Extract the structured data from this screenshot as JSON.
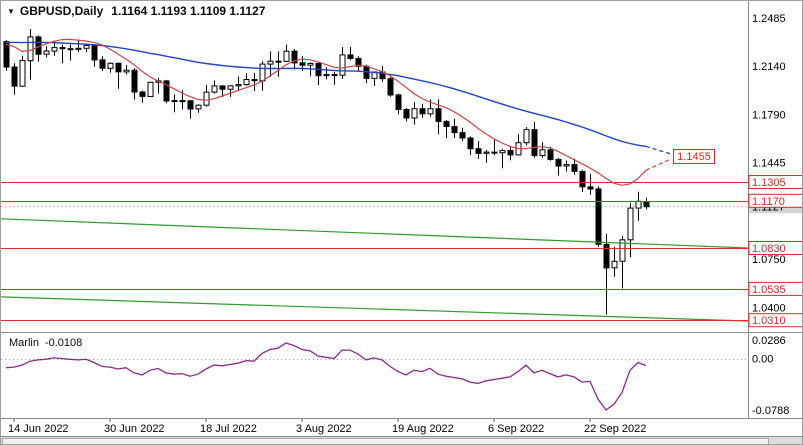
{
  "window": {
    "symbol_label": "GBPUSD,Daily",
    "ohlc_label": "1.1164 1.1193 1.1109 1.1127"
  },
  "colors": {
    "level_red": "#d92b2b",
    "ma_blue": "#2344c4",
    "ma_red": "#c94747",
    "trend_green": "#2d9e2d",
    "marlin_purple": "#8b2a8b",
    "candle_up": "#ffffff",
    "candle_down": "#000000",
    "axis_text": "#000000"
  },
  "chart_data": {
    "type": "candlestick",
    "symbol": "GBPUSD",
    "timeframe": "Daily",
    "ohlc": {
      "open": 1.1164,
      "high": 1.1193,
      "low": 1.1109,
      "close": 1.1127
    },
    "current_price": 1.1127,
    "price_axis": {
      "ticks": [
        {
          "text": "1.2485",
          "v": 1.2485
        },
        {
          "text": "1.2140",
          "v": 1.214
        },
        {
          "text": "1.1790",
          "v": 1.179
        },
        {
          "text": "1.1445",
          "v": 1.1445
        },
        {
          "text": "1.0750",
          "v": 1.075
        },
        {
          "text": "1.0400",
          "v": 1.04
        }
      ]
    },
    "levels": [
      1.1305,
      1.117,
      1.083,
      1.0535,
      1.031
    ],
    "target_annotation": {
      "label": "1.1455",
      "price": 1.1455
    },
    "trendlines": [
      {
        "start": 1.104,
        "end": 1.083
      },
      {
        "start": 1.0478,
        "end": 1.0304
      }
    ],
    "x_labels": [
      {
        "text": "14 Jun 2022",
        "i": 1
      },
      {
        "text": "30 Jun 2022",
        "i": 13
      },
      {
        "text": "18 Jul 2022",
        "i": 25
      },
      {
        "text": "3 Aug 2022",
        "i": 37
      },
      {
        "text": "19 Aug 2022",
        "i": 49
      },
      {
        "text": "6 Sep 2022",
        "i": 61
      },
      {
        "text": "22 Sep 2022",
        "i": 73
      }
    ],
    "candles": [
      [
        1.2316,
        1.2327,
        1.2106,
        1.2133
      ],
      [
        1.2133,
        1.216,
        1.1934,
        1.1995
      ],
      [
        1.1995,
        1.2215,
        1.199,
        1.2179
      ],
      [
        1.2179,
        1.2406,
        1.2041,
        1.235
      ],
      [
        1.235,
        1.236,
        1.2171,
        1.2225
      ],
      [
        1.2225,
        1.2283,
        1.2203,
        1.2248
      ],
      [
        1.2248,
        1.2324,
        1.2214,
        1.2273
      ],
      [
        1.2273,
        1.2293,
        1.216,
        1.2265
      ],
      [
        1.2265,
        1.2296,
        1.218,
        1.226
      ],
      [
        1.226,
        1.2332,
        1.224,
        1.2268
      ],
      [
        1.2268,
        1.2299,
        1.2241,
        1.2288
      ],
      [
        1.2288,
        1.229,
        1.2135,
        1.2184
      ],
      [
        1.2184,
        1.221,
        1.2104,
        1.2124
      ],
      [
        1.2124,
        1.2167,
        1.2093,
        1.216
      ],
      [
        1.216,
        1.2165,
        1.1976,
        1.2098
      ],
      [
        1.2098,
        1.2147,
        1.2079,
        1.211
      ],
      [
        1.211,
        1.2126,
        1.1899,
        1.1953
      ],
      [
        1.1953,
        1.1963,
        1.1877,
        1.1921
      ],
      [
        1.1921,
        1.2027,
        1.1917,
        1.2023
      ],
      [
        1.2023,
        1.2056,
        1.1942,
        1.2033
      ],
      [
        1.2033,
        1.204,
        1.1872,
        1.1888
      ],
      [
        1.1888,
        1.1934,
        1.1807,
        1.1891
      ],
      [
        1.1891,
        1.1966,
        1.1827,
        1.189
      ],
      [
        1.189,
        1.1895,
        1.176,
        1.1831
      ],
      [
        1.1831,
        1.1866,
        1.1803,
        1.1858
      ],
      [
        1.1858,
        1.2004,
        1.1848,
        1.1952
      ],
      [
        1.1952,
        1.2036,
        1.1942,
        1.1997
      ],
      [
        1.1997,
        1.2002,
        1.1917,
        1.1973
      ],
      [
        1.1973,
        1.2003,
        1.1918,
        1.1997
      ],
      [
        1.1997,
        1.2064,
        1.1966,
        1.2006
      ],
      [
        1.2006,
        1.209,
        1.1999,
        1.2043
      ],
      [
        1.2043,
        1.2091,
        1.196,
        1.2034
      ],
      [
        1.2034,
        1.2175,
        1.1962,
        1.2154
      ],
      [
        1.2154,
        1.2246,
        1.2063,
        1.2175
      ],
      [
        1.2175,
        1.2247,
        1.2062,
        1.2174
      ],
      [
        1.2174,
        1.2293,
        1.217,
        1.2247
      ],
      [
        1.2247,
        1.2262,
        1.2115,
        1.2163
      ],
      [
        1.2163,
        1.2211,
        1.2106,
        1.2146
      ],
      [
        1.2146,
        1.2166,
        1.2065,
        1.2158
      ],
      [
        1.2158,
        1.2168,
        1.2003,
        1.207
      ],
      [
        1.207,
        1.2131,
        1.2044,
        1.2078
      ],
      [
        1.2078,
        1.2097,
        1.2004,
        1.2074
      ],
      [
        1.2074,
        1.2276,
        1.2047,
        1.222
      ],
      [
        1.222,
        1.2278,
        1.2181,
        1.2195
      ],
      [
        1.2195,
        1.2211,
        1.21,
        1.2138
      ],
      [
        1.2138,
        1.2149,
        1.2018,
        1.2051
      ],
      [
        1.2051,
        1.2101,
        1.1997,
        1.2097
      ],
      [
        1.2097,
        1.2142,
        1.2026,
        1.2049
      ],
      [
        1.2049,
        1.206,
        1.1919,
        1.1932
      ],
      [
        1.1932,
        1.194,
        1.1792,
        1.1827
      ],
      [
        1.1827,
        1.1838,
        1.1742,
        1.1766
      ],
      [
        1.1766,
        1.188,
        1.1718,
        1.1833
      ],
      [
        1.1833,
        1.1869,
        1.1768,
        1.1796
      ],
      [
        1.1796,
        1.19,
        1.1775,
        1.1833
      ],
      [
        1.1833,
        1.1901,
        1.1649,
        1.1741
      ],
      [
        1.1741,
        1.1751,
        1.1621,
        1.1704
      ],
      [
        1.1704,
        1.176,
        1.1622,
        1.1661
      ],
      [
        1.1661,
        1.1696,
        1.16,
        1.1622
      ],
      [
        1.1622,
        1.1633,
        1.1499,
        1.1545
      ],
      [
        1.1545,
        1.16,
        1.1472,
        1.1511
      ],
      [
        1.1511,
        1.1536,
        1.1444,
        1.152
      ],
      [
        1.152,
        1.1609,
        1.1497,
        1.1516
      ],
      [
        1.1516,
        1.1545,
        1.1404,
        1.1532
      ],
      [
        1.1532,
        1.156,
        1.1462,
        1.15
      ],
      [
        1.15,
        1.1648,
        1.1497,
        1.1588
      ],
      [
        1.1588,
        1.17,
        1.1569,
        1.1682
      ],
      [
        1.1682,
        1.1738,
        1.1481,
        1.1495
      ],
      [
        1.1495,
        1.159,
        1.148,
        1.1537
      ],
      [
        1.1537,
        1.156,
        1.1459,
        1.1468
      ],
      [
        1.1468,
        1.148,
        1.1351,
        1.142
      ],
      [
        1.142,
        1.146,
        1.138,
        1.143
      ],
      [
        1.143,
        1.1474,
        1.1356,
        1.1381
      ],
      [
        1.1381,
        1.1394,
        1.1233,
        1.127
      ],
      [
        1.127,
        1.1365,
        1.1213,
        1.1255
      ],
      [
        1.1255,
        1.1273,
        1.084,
        1.0856
      ],
      [
        1.0856,
        1.0931,
        1.035,
        1.0687
      ],
      [
        1.0687,
        1.0838,
        1.0622,
        1.0734
      ],
      [
        1.0734,
        1.0916,
        1.0539,
        1.0889
      ],
      [
        1.0889,
        1.1153,
        1.0763,
        1.1117
      ],
      [
        1.1117,
        1.1235,
        1.1025,
        1.1166
      ],
      [
        1.1164,
        1.1193,
        1.1109,
        1.1127
      ]
    ],
    "ma_blue": [
      1.231,
      1.231,
      1.2309,
      1.231,
      1.2311,
      1.231,
      1.2308,
      1.2306,
      1.2303,
      1.23,
      1.2297,
      1.2293,
      1.2288,
      1.2281,
      1.2273,
      1.2264,
      1.2254,
      1.2243,
      1.2232,
      1.2222,
      1.2211,
      1.22,
      1.2189,
      1.2178,
      1.2167,
      1.2158,
      1.2151,
      1.2144,
      1.2138,
      1.2133,
      1.2129,
      1.2125,
      1.2123,
      1.2122,
      1.2122,
      1.2123,
      1.2124,
      1.2122,
      1.212,
      1.2116,
      1.2112,
      1.2108,
      1.2106,
      1.2105,
      1.2103,
      1.2099,
      1.2094,
      1.2088,
      1.208,
      1.207,
      1.2058,
      1.2046,
      1.2034,
      1.2021,
      1.2007,
      1.1992,
      1.1976,
      1.1959,
      1.1941,
      1.1922,
      1.1903,
      1.1884,
      1.1866,
      1.1848,
      1.1831,
      1.1815,
      1.18,
      1.1785,
      1.177,
      1.1754,
      1.1737,
      1.172,
      1.1701,
      1.1681,
      1.1659,
      1.1637,
      1.1616,
      1.1597,
      1.1582,
      1.157,
      1.1561
    ],
    "ma_red": [
      1.2295,
      1.228,
      1.2245,
      1.2252,
      1.2278,
      1.23,
      1.2318,
      1.233,
      1.2332,
      1.2326,
      1.232,
      1.231,
      1.2292,
      1.2262,
      1.2226,
      1.219,
      1.215,
      1.2102,
      1.2062,
      1.2032,
      1.2006,
      1.1976,
      1.1946,
      1.192,
      1.19,
      1.1894,
      1.1904,
      1.1924,
      1.1944,
      1.1964,
      1.1984,
      1.2004,
      1.203,
      1.2068,
      1.2108,
      1.2148,
      1.2178,
      1.219,
      1.2185,
      1.217,
      1.215,
      1.2131,
      1.2125,
      1.2135,
      1.2145,
      1.214,
      1.212,
      1.21,
      1.207,
      1.203,
      1.1986,
      1.1941,
      1.1906,
      1.188,
      1.186,
      1.184,
      1.1811,
      1.1776,
      1.1736,
      1.1691,
      1.1651,
      1.1616,
      1.1586,
      1.1561,
      1.1546,
      1.1545,
      1.1554,
      1.156,
      1.155,
      1.1526,
      1.1496,
      1.1466,
      1.1436,
      1.1406,
      1.1371,
      1.1331,
      1.1296,
      1.1281,
      1.1291,
      1.133,
      1.139
    ],
    "indicator": {
      "name": "Marlin",
      "current_value": "-0.0108",
      "ticks": [
        {
          "text": "0.0286",
          "v": 0.0286
        },
        {
          "text": "0.00",
          "v": 0.0
        },
        {
          "text": "-0.0788",
          "v": -0.0788
        }
      ],
      "values": [
        -0.014,
        -0.013,
        -0.01,
        -0.004,
        -0.002,
        -0.001,
        0.001,
        0.0,
        -0.001,
        -0.002,
        -0.001,
        -0.006,
        -0.012,
        -0.013,
        -0.016,
        -0.014,
        -0.022,
        -0.025,
        -0.018,
        -0.015,
        -0.022,
        -0.024,
        -0.023,
        -0.027,
        -0.024,
        -0.016,
        -0.01,
        -0.011,
        -0.009,
        -0.007,
        -0.003,
        -0.004,
        0.008,
        0.014,
        0.016,
        0.024,
        0.02,
        0.014,
        0.012,
        0.004,
        0.002,
        0.0,
        0.013,
        0.013,
        0.007,
        -0.002,
        0.001,
        -0.002,
        -0.012,
        -0.02,
        -0.025,
        -0.018,
        -0.02,
        -0.015,
        -0.024,
        -0.027,
        -0.029,
        -0.031,
        -0.036,
        -0.038,
        -0.034,
        -0.032,
        -0.03,
        -0.028,
        -0.02,
        -0.01,
        -0.022,
        -0.018,
        -0.023,
        -0.028,
        -0.025,
        -0.028,
        -0.036,
        -0.035,
        -0.062,
        -0.0788,
        -0.07,
        -0.052,
        -0.018,
        -0.006,
        -0.0108
      ]
    }
  }
}
